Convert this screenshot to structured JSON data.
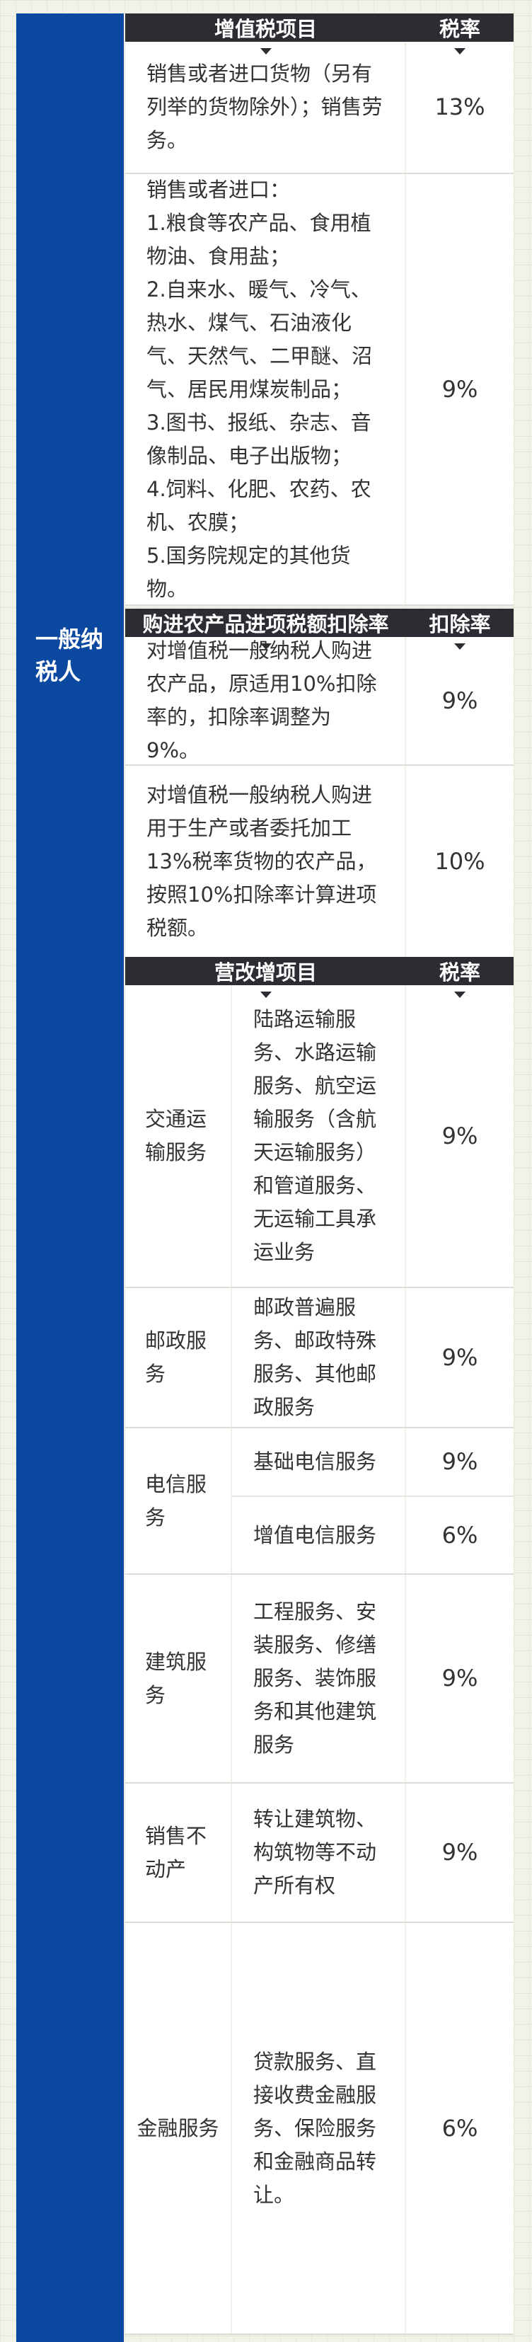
{
  "taxpayer_label": "一般纳税人",
  "colors": {
    "side": "#0b48a0",
    "header": "#2b2d33"
  },
  "vat": {
    "header": {
      "item": "增值税项目",
      "rate": "税率"
    },
    "rows": [
      {
        "desc": "销售或者进口货物（另有列举的货物除外）；销售劳务。",
        "rate": "13%"
      },
      {
        "desc": "销售或者进口：\n1.粮食等农产品、食用植物油、食用盐；\n2.自来水、暖气、冷气、热水、煤气、石油液化气、天然气、二甲醚、沼气、居民用煤炭制品；\n3.图书、报纸、杂志、音像制品、电子出版物；\n4.饲料、化肥、农药、农机、农膜；\n5.国务院规定的其他货物。",
        "rate": "9%"
      }
    ]
  },
  "deduction": {
    "header": {
      "item": "购进农产品进项税额扣除率",
      "rate": "扣除率"
    },
    "rows": [
      {
        "desc": "对增值税一般纳税人购进农产品，原适用10%扣除率的，扣除率调整为9%。",
        "rate": "9%"
      },
      {
        "desc": "对增值税一般纳税人购进用于生产或者委托加工13%税率货物的农产品，按照10%扣除率计算进项税额。",
        "rate": "10%"
      }
    ]
  },
  "service": {
    "header": {
      "item": "营改增项目",
      "rate": "税率"
    },
    "rows": [
      {
        "category": "交通运输服务",
        "item": "陆路运输服务、水路运输服务、航空运输服务（含航天运输服务）和管道服务、无运输工具承运业务",
        "rate": "9%"
      },
      {
        "category": "邮政服务",
        "item": "邮政普遍服务、邮政特殊服务、其他邮政服务",
        "rate": "9%"
      },
      {
        "category": "电信服务",
        "subs": [
          {
            "item": "基础电信服务",
            "rate": "9%"
          },
          {
            "item": "增值电信服务",
            "rate": "6%"
          }
        ]
      },
      {
        "category": "建筑服务",
        "item": "工程服务、安装服务、修缮服务、装饰服务和其他建筑服务",
        "rate": "9%"
      },
      {
        "category": "销售不动产",
        "item": "转让建筑物、构筑物等不动产所有权",
        "rate": "9%"
      },
      {
        "category": "金融服务",
        "item": "贷款服务、直接收费金融服务、保险服务和金融商品转让。",
        "rate": "6%"
      }
    ]
  }
}
